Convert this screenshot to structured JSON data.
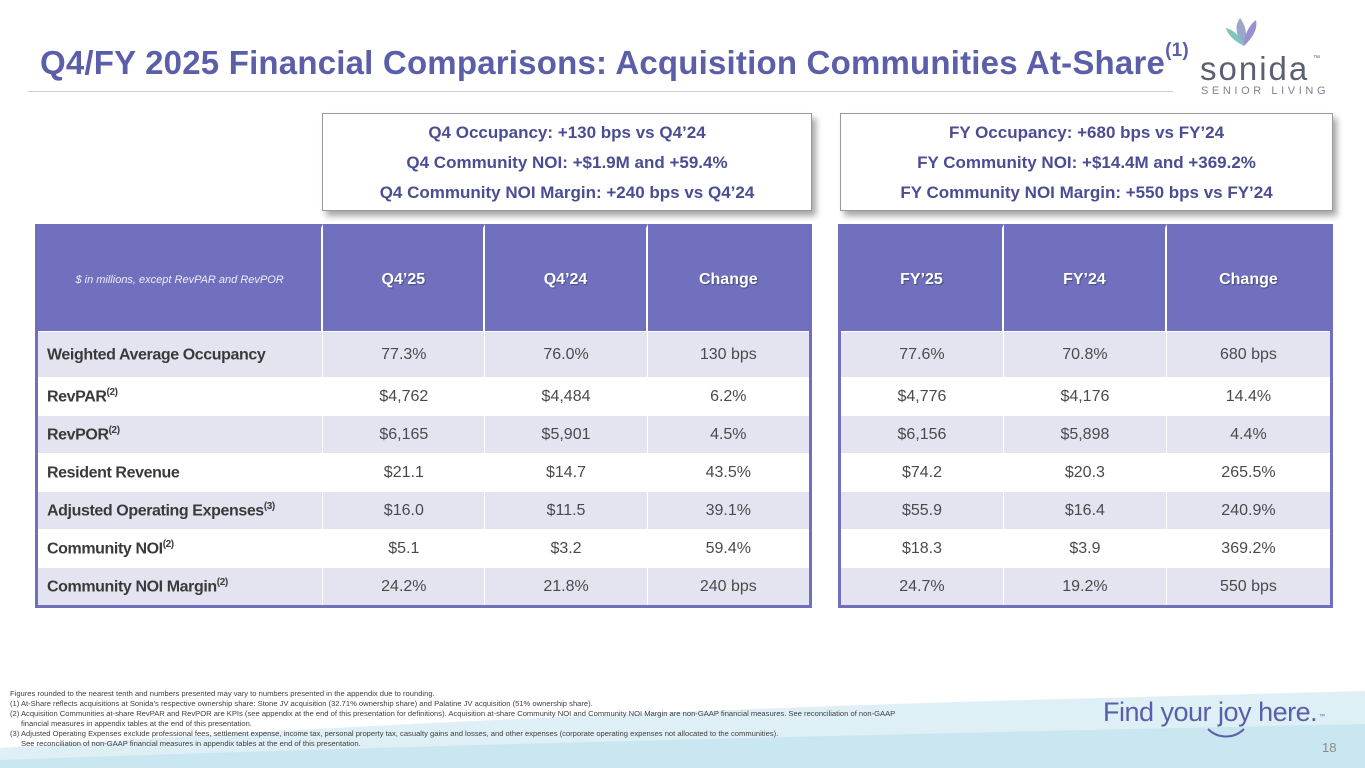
{
  "title": {
    "main": "Q4/FY 2025 Financial Comparisons: Acquisition Communities At-Share",
    "sup": "(1)"
  },
  "logo": {
    "name": "sonida",
    "tm": "™",
    "sub": "SENIOR LIVING"
  },
  "callouts": {
    "q4": [
      "Q4 Occupancy: +130 bps vs Q4’24",
      "Q4 Community NOI: +$1.9M and +59.4%",
      "Q4 Community NOI Margin: +240 bps vs Q4’24"
    ],
    "fy": [
      "FY Occupancy: +680 bps vs FY’24",
      "FY Community NOI: +$14.4M and +369.2%",
      "FY Community NOI Margin: +550 bps vs FY’24"
    ]
  },
  "table": {
    "unit_note": "$ in millions, except RevPAR and RevPOR",
    "q4_headers": [
      "Q4’25",
      "Q4’24",
      "Change"
    ],
    "fy_headers": [
      "FY’25",
      "FY’24",
      "Change"
    ],
    "rows": [
      {
        "label": "Weighted Average Occupancy",
        "sup": "",
        "q4": [
          "77.3%",
          "76.0%",
          "130 bps"
        ],
        "fy": [
          "77.6%",
          "70.8%",
          "680 bps"
        ]
      },
      {
        "label": "RevPAR",
        "sup": "(2)",
        "q4": [
          "$4,762",
          "$4,484",
          "6.2%"
        ],
        "fy": [
          "$4,776",
          "$4,176",
          "14.4%"
        ]
      },
      {
        "label": "RevPOR",
        "sup": "(2)",
        "q4": [
          "$6,165",
          "$5,901",
          "4.5%"
        ],
        "fy": [
          "$6,156",
          "$5,898",
          "4.4%"
        ]
      },
      {
        "label": "Resident Revenue",
        "sup": "",
        "q4": [
          "$21.1",
          "$14.7",
          "43.5%"
        ],
        "fy": [
          "$74.2",
          "$20.3",
          "265.5%"
        ]
      },
      {
        "label": "Adjusted Operating Expenses",
        "sup": "(3)",
        "q4": [
          "$16.0",
          "$11.5",
          "39.1%"
        ],
        "fy": [
          "$55.9",
          "$16.4",
          "240.9%"
        ]
      },
      {
        "label": "Community NOI",
        "sup": "(2)",
        "q4": [
          "$5.1",
          "$3.2",
          "59.4%"
        ],
        "fy": [
          "$18.3",
          "$3.9",
          "369.2%"
        ]
      },
      {
        "label": "Community NOI Margin",
        "sup": "(2)",
        "q4": [
          "24.2%",
          "21.8%",
          "240 bps"
        ],
        "fy": [
          "24.7%",
          "19.2%",
          "550 bps"
        ]
      }
    ]
  },
  "footnotes": [
    "Figures rounded to the nearest tenth and numbers presented may vary to numbers presented in the appendix due to rounding.",
    "(1) At-Share reflects acquisitions at Sonida’s respective ownership share: Stone JV acquisition (32.71% ownership share) and Palatine JV acquisition (51% ownership share).",
    "(2) Acquisition Communities at-share RevPAR and RevPOR are KPIs (see appendix at the end of this presentation for definitions). Acquisition at-share Community NOI and Community NOI Margin are non-GAAP financial measures. See reconciliation of non-GAAP",
    "financial measures in appendix tables at the end of this presentation.",
    "(3) Adjusted Operating Expenses exclude professional fees, settlement expense, income tax, personal property tax, casualty gains and losses, and other expenses (corporate operating expenses not allocated to the communities).",
    "See reconciliation of non-GAAP financial measures in appendix tables at the end of this presentation."
  ],
  "tagline": {
    "text": "Find your joy here.",
    "tm": "™"
  },
  "page_number": "18",
  "colors": {
    "brand_purple": "#5b5ea8",
    "table_header": "#7070bf",
    "row_shade": "#e4e4f1"
  }
}
